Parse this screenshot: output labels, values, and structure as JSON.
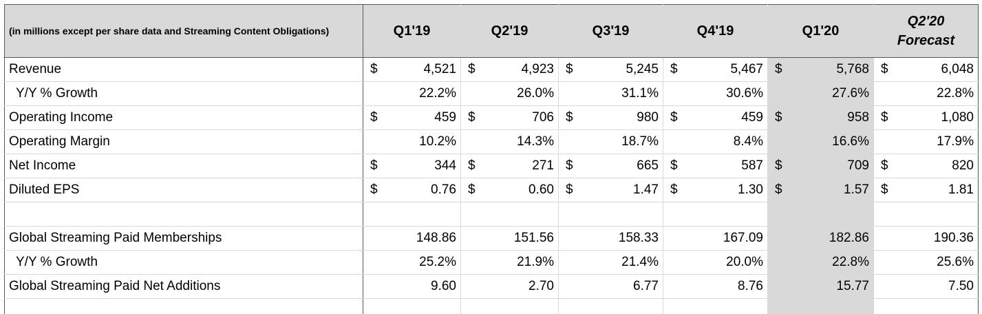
{
  "header": {
    "label": "(in millions except per share data and Streaming Content Obligations)",
    "periods": [
      "Q1'19",
      "Q2'19",
      "Q3'19",
      "Q4'19",
      "Q1'20"
    ],
    "forecast_line1": "Q2'20",
    "forecast_line2": "Forecast"
  },
  "currency_symbol": "$",
  "rows": {
    "revenue": {
      "label": "Revenue",
      "values": [
        "4,521",
        "4,923",
        "5,245",
        "5,467",
        "5,768",
        "6,048"
      ]
    },
    "revenue_growth": {
      "label": "Y/Y % Growth",
      "values": [
        "22.2%",
        "26.0%",
        "31.1%",
        "30.6%",
        "27.6%",
        "22.8%"
      ]
    },
    "operating_income": {
      "label": "Operating Income",
      "values": [
        "459",
        "706",
        "980",
        "459",
        "958",
        "1,080"
      ]
    },
    "operating_margin": {
      "label": "Operating Margin",
      "values": [
        "10.2%",
        "14.3%",
        "18.7%",
        "8.4%",
        "16.6%",
        "17.9%"
      ]
    },
    "net_income": {
      "label": "Net Income",
      "values": [
        "344",
        "271",
        "665",
        "587",
        "709",
        "820"
      ]
    },
    "diluted_eps": {
      "label": "Diluted EPS",
      "values": [
        "0.76",
        "0.60",
        "1.47",
        "1.30",
        "1.57",
        "1.81"
      ]
    },
    "memberships": {
      "label": "Global Streaming Paid Memberships",
      "values": [
        "148.86",
        "151.56",
        "158.33",
        "167.09",
        "182.86",
        "190.36"
      ]
    },
    "memberships_growth": {
      "label": "Y/Y % Growth",
      "values": [
        "25.2%",
        "21.9%",
        "21.4%",
        "20.0%",
        "22.8%",
        "25.6%"
      ]
    },
    "net_additions": {
      "label": "Global Streaming Paid Net Additions",
      "values": [
        "9.60",
        "2.70",
        "6.77",
        "8.76",
        "15.77",
        "7.50"
      ]
    }
  }
}
